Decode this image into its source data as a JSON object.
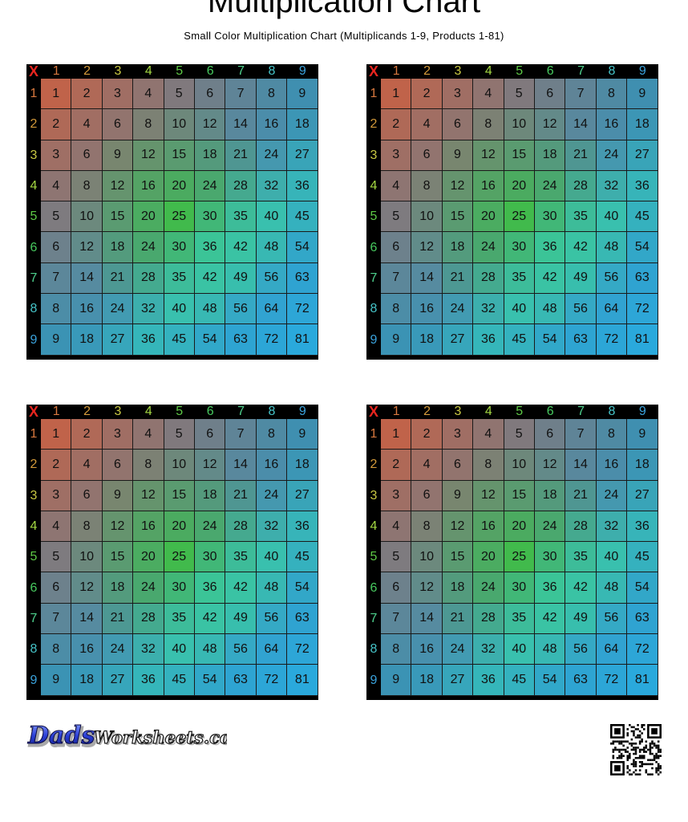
{
  "title": "Multiplication Chart",
  "subtitle": "Small Color Multiplication Chart (Multiplicands 1-9, Products 1-81)",
  "chart": {
    "corner": "X",
    "corner_color": "#e8251f",
    "headers": [
      "1",
      "2",
      "3",
      "4",
      "5",
      "6",
      "7",
      "8",
      "9"
    ],
    "header_colors": [
      "#d8783e",
      "#d49a3a",
      "#c9c843",
      "#a4d843",
      "#5ec946",
      "#47c95f",
      "#4ed18d",
      "#46c4c9",
      "#3aa2dc"
    ],
    "products": [
      [
        1,
        2,
        3,
        4,
        5,
        6,
        7,
        8,
        9
      ],
      [
        2,
        4,
        6,
        8,
        10,
        12,
        14,
        16,
        18
      ],
      [
        3,
        6,
        9,
        12,
        15,
        18,
        21,
        24,
        27
      ],
      [
        4,
        8,
        12,
        16,
        20,
        24,
        28,
        32,
        36
      ],
      [
        5,
        10,
        15,
        20,
        25,
        30,
        35,
        40,
        45
      ],
      [
        6,
        12,
        18,
        24,
        30,
        36,
        42,
        48,
        54
      ],
      [
        7,
        14,
        21,
        28,
        35,
        42,
        49,
        56,
        63
      ],
      [
        8,
        16,
        24,
        32,
        40,
        48,
        56,
        64,
        72
      ],
      [
        9,
        18,
        27,
        36,
        45,
        54,
        63,
        72,
        81
      ]
    ],
    "cell_colors": {
      "top_left": "#c0634a",
      "top_right": "#3f8fb0",
      "center": "#3dc23d",
      "bottom_left": "#3b93b4",
      "bottom_right": "#2aa9dc",
      "mid_band": "#36d6b0"
    }
  },
  "chart_count": 4,
  "footer": {
    "logo_text": "DadsWorksheets.com",
    "qr_label": "qr-code"
  }
}
